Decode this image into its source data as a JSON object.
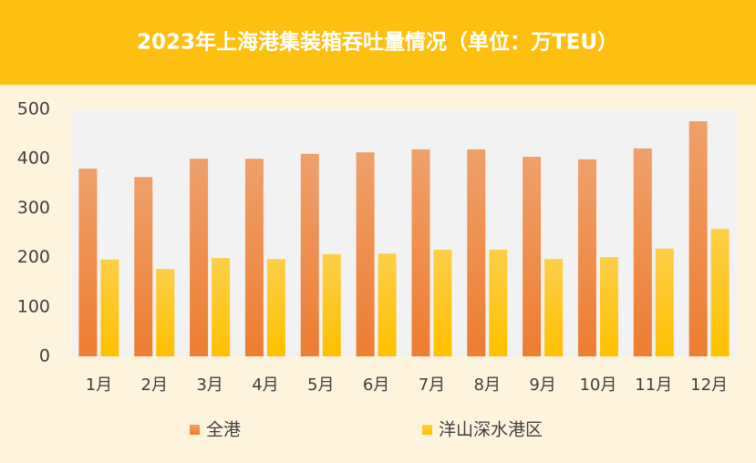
{
  "chart_data": {
    "type": "bar",
    "title": "2023年上海港集装箱吞吐量情况（单位：万TEU）",
    "categories": [
      "1月",
      "2月",
      "3月",
      "4月",
      "5月",
      "6月",
      "7月",
      "8月",
      "9月",
      "10月",
      "11月",
      "12月"
    ],
    "series": [
      {
        "name": "全港",
        "color": "#ED7D31",
        "values": [
          380,
          363,
          400,
          400,
          410,
          413,
          419,
          419,
          404,
          399,
          421,
          476
        ]
      },
      {
        "name": "洋山深水港区",
        "color": "#FFC000",
        "values": [
          196,
          177,
          199,
          197,
          207,
          208,
          216,
          216,
          197,
          201,
          218,
          258
        ]
      }
    ],
    "ylim": [
      0,
      500
    ],
    "yticks": [
      0,
      100,
      200,
      300,
      400,
      500
    ],
    "grid": false
  }
}
